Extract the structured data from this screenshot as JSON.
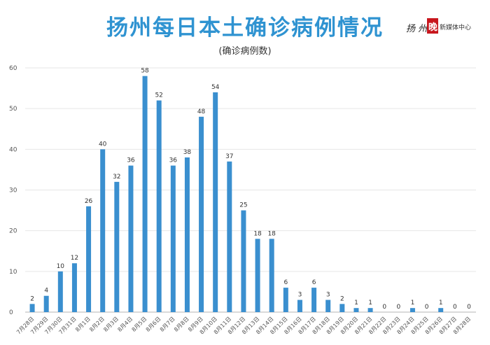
{
  "header": {
    "title": "扬州每日本土确诊病例情况",
    "subtitle": "(确诊病例数)"
  },
  "logo": {
    "script_text": "扬 州",
    "red_char": "晚",
    "org_text": "新媒体中心"
  },
  "colors": {
    "bar": "#3a8fcf",
    "title": "#2f93d1",
    "grid": "#e6e6e6"
  },
  "chart_data": {
    "type": "bar",
    "title": "扬州每日本土确诊病例情况",
    "subtitle": "(确诊病例数)",
    "xlabel": "",
    "ylabel": "",
    "ylim": [
      0,
      60
    ],
    "yticks": [
      0,
      10,
      20,
      30,
      40,
      50,
      60
    ],
    "grid": true,
    "categories": [
      "7月28日",
      "7月29日",
      "7月30日",
      "7月31日",
      "8月1日",
      "8月2日",
      "8月3日",
      "8月4日",
      "8月5日",
      "8月6日",
      "8月7日",
      "8月8日",
      "8月9日",
      "8月10日",
      "8月11日",
      "8月12日",
      "8月13日",
      "8月14日",
      "8月15日",
      "8月16日",
      "8月17日",
      "8月18日",
      "8月19日",
      "8月20日",
      "8月21日",
      "8月22日",
      "8月23日",
      "8月24日",
      "8月25日",
      "8月26日",
      "8月27日",
      "8月28日"
    ],
    "values": [
      2,
      4,
      10,
      12,
      26,
      40,
      32,
      36,
      58,
      52,
      36,
      38,
      48,
      54,
      37,
      25,
      18,
      18,
      6,
      3,
      6,
      3,
      2,
      1,
      1,
      0,
      0,
      1,
      0,
      1,
      0,
      0
    ]
  }
}
